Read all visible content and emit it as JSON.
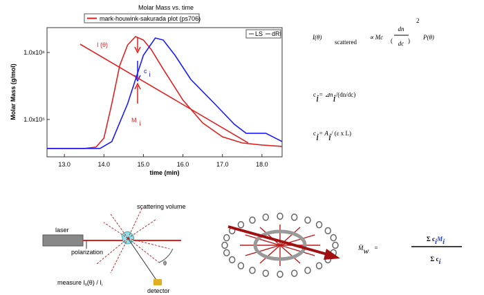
{
  "chart_data": {
    "type": "line",
    "title": "Molar Mass vs. time",
    "xlabel": "time (min)",
    "ylabel": "Molar Mass (g/mol)",
    "xlim": [
      12.56,
      18.51
    ],
    "xticks": [
      {
        "value": 13,
        "label": "13.0"
      },
      {
        "value": 14,
        "label": "14.0"
      },
      {
        "value": 15,
        "label": "15.0"
      },
      {
        "value": 16,
        "label": "16.0"
      },
      {
        "value": 17,
        "label": "17.0"
      },
      {
        "value": 18,
        "label": "18.0"
      }
    ],
    "ylim": [
      27700,
      2350000
    ],
    "ylog": true,
    "yticks": [
      {
        "value": 100000,
        "label": "1.0x10⁵"
      },
      {
        "value": 1000000,
        "label": "1.0x10⁶"
      }
    ],
    "series": [
      {
        "name": "mark-houwink-sakurada plot (ps706)",
        "color": "#e02020",
        "x": [
          13.4,
          17.65
        ],
        "values": [
          1330000,
          44700
        ]
      },
      {
        "name": "LS",
        "color": "#e02020",
        "x": [
          12.56,
          13.5,
          13.8,
          14.0,
          14.2,
          14.4,
          14.6,
          14.8,
          15.0,
          15.2,
          15.5,
          16.0,
          16.5,
          17.0,
          17.5,
          18.0,
          18.51
        ],
        "values": [
          36900,
          36900,
          38700,
          52700,
          172600,
          637000,
          1297000,
          1726000,
          1535000,
          1100000,
          566000,
          194500,
          88800,
          55200,
          44600,
          41600,
          39600
        ]
      },
      {
        "name": "dRI",
        "color": "#1a1aff",
        "x": [
          12.56,
          13.9,
          14.2,
          14.6,
          15.0,
          15.3,
          15.5,
          15.8,
          16.2,
          16.8,
          17.3,
          17.6,
          18.1,
          18.51
        ],
        "values": [
          36900,
          36900,
          46800,
          172600,
          910000,
          1645000,
          1535000,
          910000,
          396000,
          172600,
          84700,
          62200,
          62200,
          46800
        ]
      }
    ],
    "annotations": [
      {
        "text": "I  (θ)"
      },
      {
        "text": "c",
        "sub": "i"
      },
      {
        "text": "M",
        "sub": "i"
      }
    ]
  },
  "equations": {
    "scattering": {
      "lhs": "I(θ)",
      "sub": "scattered",
      "rel": "∝ Mc",
      "num": "dn",
      "den": "dc",
      "exp": "2",
      "tail": "P(θ)"
    },
    "conc_dn": {
      "c": "c",
      "sub": "i",
      "mid": "= ⊿n",
      "sub2": "i",
      "tail": "/(dn/dc)"
    },
    "conc_abs": {
      "c": "c",
      "sub": "i",
      "mid": "= A",
      "sub2": "i",
      "tail": "/ (ε x L)"
    },
    "mw": {
      "lhs": "M̄",
      "lsub": "w",
      "eq": "=",
      "num": "Σ c",
      "nsub": "i",
      "num2": "M",
      "nsub2": "i",
      "den": "Σ c",
      "dsub": "i"
    }
  },
  "diagram": {
    "laser": "laser",
    "polarization": "polarization",
    "volume": "scattering volume",
    "angle": "θ",
    "measure": "measure I",
    "msub": "θ",
    "mtail": "(θ) / I",
    "msub2": "i",
    "detector": "detector"
  }
}
